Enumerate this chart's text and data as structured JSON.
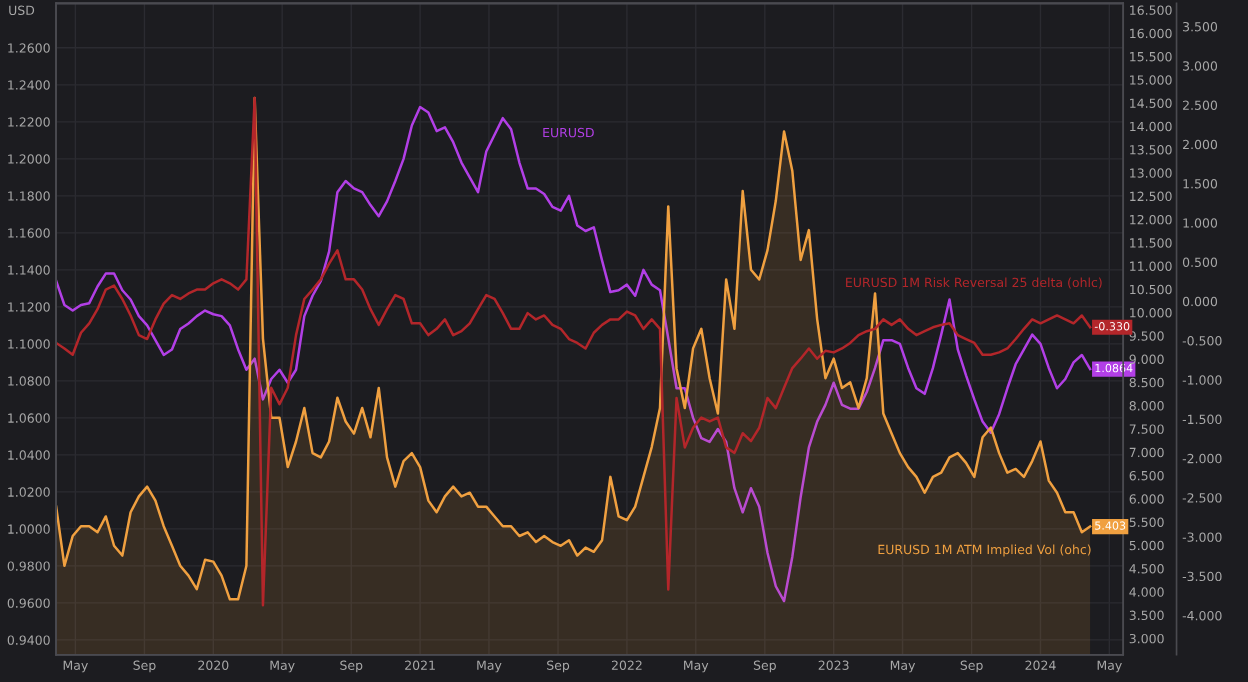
{
  "chart_data": {
    "type": "line",
    "ylabel": "USD",
    "grid": true,
    "x": [
      2019.24,
      2019.28,
      2019.32,
      2019.36,
      2019.4,
      2019.44,
      2019.48,
      2019.52,
      2019.56,
      2019.6,
      2019.64,
      2019.68,
      2019.72,
      2019.76,
      2019.8,
      2019.84,
      2019.88,
      2019.92,
      2019.96,
      2020.0,
      2020.04,
      2020.08,
      2020.12,
      2020.16,
      2020.2,
      2020.24,
      2020.28,
      2020.32,
      2020.36,
      2020.4,
      2020.44,
      2020.48,
      2020.52,
      2020.56,
      2020.6,
      2020.64,
      2020.68,
      2020.72,
      2020.76,
      2020.8,
      2020.84,
      2020.88,
      2020.92,
      2020.96,
      2021.0,
      2021.04,
      2021.08,
      2021.12,
      2021.16,
      2021.2,
      2021.24,
      2021.28,
      2021.32,
      2021.36,
      2021.4,
      2021.44,
      2021.48,
      2021.52,
      2021.56,
      2021.6,
      2021.64,
      2021.68,
      2021.72,
      2021.76,
      2021.8,
      2021.84,
      2021.88,
      2021.92,
      2021.96,
      2022.0,
      2022.04,
      2022.08,
      2022.12,
      2022.16,
      2022.2,
      2022.24,
      2022.28,
      2022.32,
      2022.36,
      2022.4,
      2022.44,
      2022.48,
      2022.52,
      2022.56,
      2022.6,
      2022.64,
      2022.68,
      2022.72,
      2022.76,
      2022.8,
      2022.84,
      2022.88,
      2022.92,
      2022.96,
      2023.0,
      2023.04,
      2023.08,
      2023.12,
      2023.16,
      2023.2,
      2023.24,
      2023.28,
      2023.32,
      2023.36,
      2023.4,
      2023.44,
      2023.48,
      2023.52,
      2023.56,
      2023.6,
      2023.64,
      2023.68,
      2023.72,
      2023.76,
      2023.8,
      2023.84,
      2023.88,
      2023.92,
      2023.96,
      2024.0,
      2024.04,
      2024.08,
      2024.12,
      2024.16,
      2024.2,
      2024.24
    ],
    "xlim": [
      2019.24,
      2024.4
    ],
    "xticks": [
      {
        "value": 2019.333,
        "label": "May"
      },
      {
        "value": 2019.667,
        "label": "Sep"
      },
      2020,
      {
        "value": 2020.333,
        "label": "May"
      },
      {
        "value": 2020.667,
        "label": "Sep"
      },
      2021,
      {
        "value": 2021.333,
        "label": "May"
      },
      {
        "value": 2021.667,
        "label": "Sep"
      },
      2022,
      {
        "value": 2022.333,
        "label": "May"
      },
      {
        "value": 2022.667,
        "label": "Sep"
      },
      2023,
      {
        "value": 2023.333,
        "label": "May"
      },
      {
        "value": 2023.667,
        "label": "Sep"
      },
      2024,
      {
        "value": 2024.333,
        "label": "May"
      }
    ],
    "ylim": [
      0.932,
      1.284
    ],
    "yticks": [
      {
        "value": 0.94,
        "label": "0.9400"
      },
      {
        "value": 0.96,
        "label": "0.9600"
      },
      {
        "value": 0.98,
        "label": "0.9800"
      },
      {
        "value": 1.0,
        "label": "1.0000"
      },
      {
        "value": 1.02,
        "label": "1.0200"
      },
      {
        "value": 1.04,
        "label": "1.0400"
      },
      {
        "value": 1.06,
        "label": "1.0600"
      },
      {
        "value": 1.08,
        "label": "1.0800"
      },
      {
        "value": 1.1,
        "label": "1.1000"
      },
      {
        "value": 1.12,
        "label": "1.1200"
      },
      {
        "value": 1.14,
        "label": "1.1400"
      },
      {
        "value": 1.16,
        "label": "1.1600"
      },
      {
        "value": 1.18,
        "label": "1.1800"
      },
      {
        "value": 1.2,
        "label": "1.2000"
      },
      {
        "value": 1.22,
        "label": "1.2200"
      },
      {
        "value": 1.24,
        "label": "1.2400"
      },
      {
        "value": 1.26,
        "label": "1.2600"
      }
    ],
    "y2lim": [
      2.65,
      16.64
    ],
    "y2ticks": [
      {
        "value": 3.0,
        "label": "3.000"
      },
      {
        "value": 3.5,
        "label": "3.500"
      },
      {
        "value": 4.0,
        "label": "4.000"
      },
      {
        "value": 4.5,
        "label": "4.500"
      },
      {
        "value": 5.0,
        "label": "5.000"
      },
      {
        "value": 5.5,
        "label": "5.500"
      },
      {
        "value": 6.0,
        "label": "6.000"
      },
      {
        "value": 6.5,
        "label": "6.500"
      },
      {
        "value": 7.0,
        "label": "7.000"
      },
      {
        "value": 7.5,
        "label": "7.500"
      },
      {
        "value": 8.0,
        "label": "8.000"
      },
      {
        "value": 8.5,
        "label": "8.500"
      },
      {
        "value": 9.0,
        "label": "9.000"
      },
      {
        "value": 9.5,
        "label": "9.500"
      },
      {
        "value": 10.0,
        "label": "10.000"
      },
      {
        "value": 10.5,
        "label": "10.500"
      },
      {
        "value": 11.0,
        "label": "11.000"
      },
      {
        "value": 11.5,
        "label": "11.500"
      },
      {
        "value": 12.0,
        "label": "12.000"
      },
      {
        "value": 12.5,
        "label": "12.500"
      },
      {
        "value": 13.0,
        "label": "13.000"
      },
      {
        "value": 13.5,
        "label": "13.500"
      },
      {
        "value": 14.0,
        "label": "14.000"
      },
      {
        "value": 14.5,
        "label": "14.500"
      },
      {
        "value": 15.0,
        "label": "15.000"
      },
      {
        "value": 15.5,
        "label": "15.500"
      },
      {
        "value": 16.0,
        "label": "16.000"
      },
      {
        "value": 16.5,
        "label": "16.500"
      }
    ],
    "y3lim": [
      -4.5,
      3.794
    ],
    "y3ticks": [
      {
        "value": -4.0,
        "label": "-4.000"
      },
      {
        "value": -3.5,
        "label": "-3.500"
      },
      {
        "value": -3.0,
        "label": "-3.000"
      },
      {
        "value": -2.5,
        "label": "-2.500"
      },
      {
        "value": -2.0,
        "label": "-2.000"
      },
      {
        "value": -1.5,
        "label": "-1.500"
      },
      {
        "value": -1.0,
        "label": "-1.000"
      },
      {
        "value": -0.5,
        "label": "-0.500"
      },
      {
        "value": 0.0,
        "label": "0.000"
      },
      {
        "value": 0.5,
        "label": "0.500"
      },
      {
        "value": 1.0,
        "label": "1.000"
      },
      {
        "value": 1.5,
        "label": "1.500"
      },
      {
        "value": 2.0,
        "label": "2.000"
      },
      {
        "value": 2.5,
        "label": "2.500"
      },
      {
        "value": 3.0,
        "label": "3.000"
      },
      {
        "value": 3.5,
        "label": "3.500"
      }
    ],
    "series": [
      {
        "name": "EURUSD 1M ATM Implied Vol (ohc)",
        "type": "area",
        "axis": "y2",
        "color": "#f0a040",
        "values": [
          5.83,
          4.56,
          5.2,
          5.41,
          5.41,
          5.28,
          5.62,
          4.99,
          4.78,
          5.71,
          6.05,
          6.26,
          5.96,
          5.41,
          4.99,
          4.56,
          4.35,
          4.06,
          4.69,
          4.65,
          4.35,
          3.84,
          3.84,
          4.56,
          14.61,
          9.44,
          7.74,
          7.74,
          6.68,
          7.23,
          7.95,
          6.98,
          6.89,
          7.23,
          8.17,
          7.66,
          7.4,
          7.95,
          7.32,
          8.38,
          6.89,
          6.26,
          6.81,
          6.98,
          6.68,
          5.96,
          5.71,
          6.05,
          6.26,
          6.05,
          6.13,
          5.83,
          5.83,
          5.62,
          5.41,
          5.41,
          5.2,
          5.28,
          5.07,
          5.2,
          5.07,
          4.99,
          5.11,
          4.78,
          4.95,
          4.86,
          5.11,
          6.47,
          5.62,
          5.54,
          5.83,
          6.47,
          7.11,
          7.95,
          12.28,
          8.8,
          7.95,
          9.23,
          9.65,
          8.59,
          7.83,
          10.71,
          9.65,
          12.61,
          10.92,
          10.71,
          11.34,
          12.4,
          13.89,
          13.04,
          11.13,
          11.77,
          9.86,
          8.59,
          9.01,
          8.38,
          8.5,
          7.95,
          8.59,
          10.41,
          7.83,
          7.4,
          6.98,
          6.68,
          6.47,
          6.13,
          6.47,
          6.56,
          6.89,
          6.98,
          6.77,
          6.47,
          7.32,
          7.53,
          6.98,
          6.56,
          6.64,
          6.47,
          6.81,
          7.23,
          6.39,
          6.13,
          5.71,
          5.71,
          5.28,
          5.403
        ],
        "value_labels": [
          null,
          null,
          null,
          null,
          null,
          null,
          null,
          null,
          null,
          null,
          null,
          null,
          null,
          null,
          null,
          null,
          null,
          null,
          null,
          null,
          null,
          null,
          null,
          null,
          null,
          null,
          null,
          null,
          null,
          null,
          null,
          null,
          null,
          null,
          null,
          null,
          null,
          null,
          null,
          null,
          null,
          null,
          null,
          null,
          null,
          null,
          null,
          null,
          null,
          null,
          null,
          null,
          null,
          null,
          null,
          null,
          null,
          null,
          null,
          null,
          null,
          null,
          null,
          null,
          null,
          null,
          null,
          null,
          null,
          null,
          null,
          null,
          null,
          null,
          null,
          null,
          null,
          null,
          null,
          null,
          null,
          null,
          null,
          null,
          null,
          null,
          null,
          null,
          null,
          null,
          null,
          null,
          null,
          null,
          null,
          null,
          null,
          null,
          null,
          null,
          null,
          null,
          null,
          null,
          null,
          null,
          null,
          null,
          null,
          null,
          null,
          null,
          null,
          null,
          null,
          null,
          null,
          null,
          null,
          null,
          null,
          null,
          null,
          null,
          null,
          "5.403"
        ]
      },
      {
        "name": "EURUSD 1M Risk Reversal 25 delta (ohlc)",
        "type": "line",
        "axis": "y3",
        "color": "#b3262a",
        "values": [
          -0.53,
          -0.6,
          -0.68,
          -0.4,
          -0.28,
          -0.1,
          0.15,
          0.2,
          0.03,
          -0.18,
          -0.43,
          -0.48,
          -0.23,
          -0.03,
          0.08,
          0.03,
          0.1,
          0.15,
          0.15,
          0.23,
          0.28,
          0.23,
          0.15,
          0.28,
          2.59,
          -3.87,
          -1.1,
          -1.31,
          -1.1,
          -0.43,
          0.03,
          0.15,
          0.28,
          0.48,
          0.65,
          0.28,
          0.28,
          0.15,
          -0.1,
          -0.3,
          -0.1,
          0.08,
          0.03,
          -0.28,
          -0.28,
          -0.43,
          -0.35,
          -0.23,
          -0.43,
          -0.38,
          -0.28,
          -0.1,
          0.08,
          0.03,
          -0.15,
          -0.35,
          -0.35,
          -0.15,
          -0.23,
          -0.18,
          -0.3,
          -0.35,
          -0.48,
          -0.53,
          -0.6,
          -0.4,
          -0.3,
          -0.23,
          -0.23,
          -0.13,
          -0.18,
          -0.35,
          -0.23,
          -0.35,
          -3.67,
          -1.23,
          -1.86,
          -1.61,
          -1.48,
          -1.53,
          -1.48,
          -1.86,
          -1.93,
          -1.68,
          -1.78,
          -1.61,
          -1.23,
          -1.36,
          -1.1,
          -0.85,
          -0.73,
          -0.6,
          -0.73,
          -0.63,
          -0.65,
          -0.6,
          -0.53,
          -0.43,
          -0.38,
          -0.35,
          -0.23,
          -0.3,
          -0.23,
          -0.35,
          -0.43,
          -0.38,
          -0.33,
          -0.3,
          -0.28,
          -0.43,
          -0.48,
          -0.53,
          -0.68,
          -0.68,
          -0.65,
          -0.6,
          -0.48,
          -0.35,
          -0.23,
          -0.28,
          -0.23,
          -0.18,
          -0.23,
          -0.28,
          -0.18,
          -0.33
        ],
        "value_labels": [
          null,
          null,
          null,
          null,
          null,
          null,
          null,
          null,
          null,
          null,
          null,
          null,
          null,
          null,
          null,
          null,
          null,
          null,
          null,
          null,
          null,
          null,
          null,
          null,
          null,
          null,
          null,
          null,
          null,
          null,
          null,
          null,
          null,
          null,
          null,
          null,
          null,
          null,
          null,
          null,
          null,
          null,
          null,
          null,
          null,
          null,
          null,
          null,
          null,
          null,
          null,
          null,
          null,
          null,
          null,
          null,
          null,
          null,
          null,
          null,
          null,
          null,
          null,
          null,
          null,
          null,
          null,
          null,
          null,
          null,
          null,
          null,
          null,
          null,
          null,
          null,
          null,
          null,
          null,
          null,
          null,
          null,
          null,
          null,
          null,
          null,
          null,
          null,
          null,
          null,
          null,
          null,
          null,
          null,
          null,
          null,
          null,
          null,
          null,
          null,
          null,
          null,
          null,
          null,
          null,
          null,
          null,
          null,
          null,
          null,
          null,
          null,
          null,
          null,
          null,
          null,
          null,
          null,
          null,
          null,
          null,
          null,
          null,
          null,
          null,
          "-0.330"
        ]
      },
      {
        "name": "EURUSD",
        "axis": "y",
        "color": "#b23fe6",
        "values": [
          1.134,
          1.121,
          1.118,
          1.121,
          1.122,
          1.131,
          1.138,
          1.138,
          1.129,
          1.124,
          1.115,
          1.11,
          1.102,
          1.094,
          1.097,
          1.108,
          1.111,
          1.115,
          1.118,
          1.116,
          1.115,
          1.11,
          1.097,
          1.086,
          1.092,
          1.07,
          1.081,
          1.086,
          1.079,
          1.086,
          1.115,
          1.126,
          1.134,
          1.15,
          1.182,
          1.188,
          1.184,
          1.182,
          1.175,
          1.169,
          1.177,
          1.188,
          1.2,
          1.218,
          1.228,
          1.225,
          1.215,
          1.217,
          1.209,
          1.198,
          1.19,
          1.182,
          1.204,
          1.213,
          1.222,
          1.216,
          1.198,
          1.184,
          1.184,
          1.181,
          1.174,
          1.172,
          1.18,
          1.164,
          1.161,
          1.163,
          1.145,
          1.128,
          1.129,
          1.132,
          1.126,
          1.14,
          1.132,
          1.129,
          1.103,
          1.076,
          1.076,
          1.06,
          1.049,
          1.047,
          1.054,
          1.047,
          1.022,
          1.009,
          1.022,
          1.012,
          0.987,
          0.969,
          0.961,
          0.985,
          1.017,
          1.044,
          1.058,
          1.067,
          1.079,
          1.067,
          1.065,
          1.065,
          1.074,
          1.087,
          1.102,
          1.102,
          1.1,
          1.087,
          1.076,
          1.073,
          1.087,
          1.105,
          1.124,
          1.097,
          1.083,
          1.07,
          1.058,
          1.052,
          1.062,
          1.076,
          1.089,
          1.097,
          1.105,
          1.1,
          1.087,
          1.076,
          1.081,
          1.09,
          1.094,
          1.0864
        ],
        "value_labels": [
          null,
          null,
          null,
          null,
          null,
          null,
          null,
          null,
          null,
          null,
          null,
          null,
          null,
          null,
          null,
          null,
          null,
          null,
          null,
          null,
          null,
          null,
          null,
          null,
          null,
          null,
          null,
          null,
          null,
          null,
          null,
          null,
          null,
          null,
          null,
          null,
          null,
          null,
          null,
          null,
          null,
          null,
          null,
          null,
          null,
          null,
          null,
          null,
          null,
          null,
          null,
          null,
          null,
          null,
          null,
          null,
          null,
          null,
          null,
          null,
          null,
          null,
          null,
          null,
          null,
          null,
          null,
          null,
          null,
          null,
          null,
          null,
          null,
          null,
          null,
          null,
          null,
          null,
          null,
          null,
          null,
          null,
          null,
          null,
          null,
          null,
          null,
          null,
          null,
          null,
          null,
          null,
          null,
          null,
          null,
          null,
          null,
          null,
          null,
          null,
          null,
          null,
          null,
          null,
          null,
          null,
          null,
          null,
          null,
          null,
          null,
          null,
          null,
          null,
          null,
          null,
          null,
          null,
          null,
          null,
          null,
          null,
          null,
          null,
          null,
          "1.0864"
        ]
      }
    ]
  }
}
